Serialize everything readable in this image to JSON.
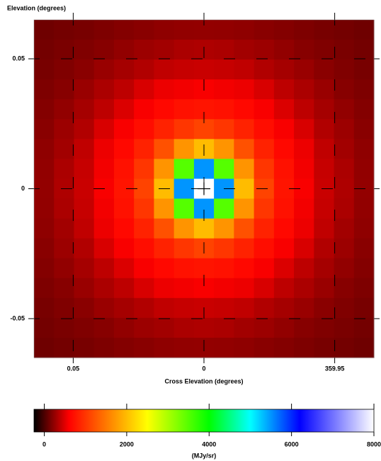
{
  "chart_data": {
    "type": "heatmap",
    "y_label": "Elevation (degrees)",
    "x_label": "Cross Elevation (degrees)",
    "xlim": [
      0.065,
      -0.065
    ],
    "ylim": [
      -0.065,
      0.065
    ],
    "xticks": [
      0.05,
      0,
      {
        "value": -0.05,
        "label": "359.95"
      }
    ],
    "yticks": [
      0.05,
      0,
      -0.05
    ],
    "grid": true,
    "values": [
      [
        120,
        135,
        150,
        170,
        190,
        205,
        225,
        235,
        240,
        235,
        225,
        205,
        190,
        170,
        150,
        135,
        120
      ],
      [
        135,
        155,
        175,
        200,
        235,
        270,
        290,
        320,
        330,
        320,
        290,
        270,
        235,
        200,
        175,
        155,
        135
      ],
      [
        150,
        175,
        210,
        260,
        300,
        340,
        390,
        410,
        420,
        410,
        390,
        340,
        300,
        260,
        210,
        175,
        150
      ],
      [
        170,
        200,
        260,
        320,
        380,
        470,
        540,
        560,
        580,
        560,
        540,
        470,
        380,
        320,
        260,
        200,
        170
      ],
      [
        190,
        235,
        300,
        380,
        480,
        580,
        660,
        730,
        750,
        730,
        660,
        580,
        480,
        380,
        300,
        235,
        190
      ],
      [
        205,
        270,
        340,
        470,
        580,
        700,
        850,
        1000,
        1100,
        1000,
        850,
        700,
        580,
        470,
        340,
        270,
        205
      ],
      [
        225,
        290,
        390,
        540,
        660,
        850,
        1200,
        1700,
        2000,
        1700,
        1200,
        850,
        660,
        540,
        390,
        290,
        225
      ],
      [
        235,
        320,
        410,
        560,
        730,
        1000,
        1700,
        3500,
        5500,
        3500,
        1700,
        1000,
        730,
        560,
        410,
        320,
        235
      ],
      [
        240,
        330,
        420,
        580,
        750,
        1100,
        2000,
        5500,
        8000,
        5500,
        2000,
        1100,
        750,
        580,
        420,
        330,
        240
      ],
      [
        235,
        320,
        410,
        560,
        730,
        1000,
        1700,
        3500,
        5500,
        3500,
        1700,
        1000,
        730,
        560,
        410,
        320,
        235
      ],
      [
        225,
        290,
        390,
        540,
        660,
        850,
        1200,
        1700,
        2000,
        1700,
        1200,
        850,
        660,
        540,
        390,
        290,
        225
      ],
      [
        205,
        270,
        340,
        470,
        580,
        700,
        850,
        1000,
        1100,
        1000,
        850,
        700,
        580,
        470,
        340,
        270,
        205
      ],
      [
        190,
        235,
        300,
        380,
        480,
        580,
        660,
        730,
        750,
        730,
        660,
        580,
        480,
        380,
        300,
        235,
        190
      ],
      [
        170,
        200,
        260,
        320,
        380,
        470,
        540,
        560,
        580,
        560,
        540,
        470,
        380,
        320,
        260,
        200,
        170
      ],
      [
        150,
        175,
        210,
        260,
        300,
        340,
        390,
        410,
        420,
        410,
        390,
        340,
        300,
        260,
        210,
        175,
        150
      ],
      [
        135,
        155,
        175,
        200,
        235,
        270,
        290,
        320,
        330,
        320,
        290,
        270,
        235,
        200,
        175,
        155,
        135
      ],
      [
        120,
        135,
        150,
        170,
        190,
        205,
        225,
        235,
        240,
        235,
        225,
        205,
        190,
        170,
        150,
        135,
        120
      ]
    ],
    "colormap": [
      [
        -250,
        "#000000"
      ],
      [
        600,
        "#ff0000"
      ],
      [
        2500,
        "#ffff00"
      ],
      [
        4000,
        "#00ff00"
      ],
      [
        5000,
        "#00ffff"
      ],
      [
        6200,
        "#0000ff"
      ],
      [
        8000,
        "#ffffff"
      ]
    ],
    "colorbar": {
      "label": "(MJy/sr)",
      "lim": [
        -250,
        8000
      ],
      "ticks": [
        0,
        2000,
        4000,
        6000,
        8000
      ]
    }
  }
}
